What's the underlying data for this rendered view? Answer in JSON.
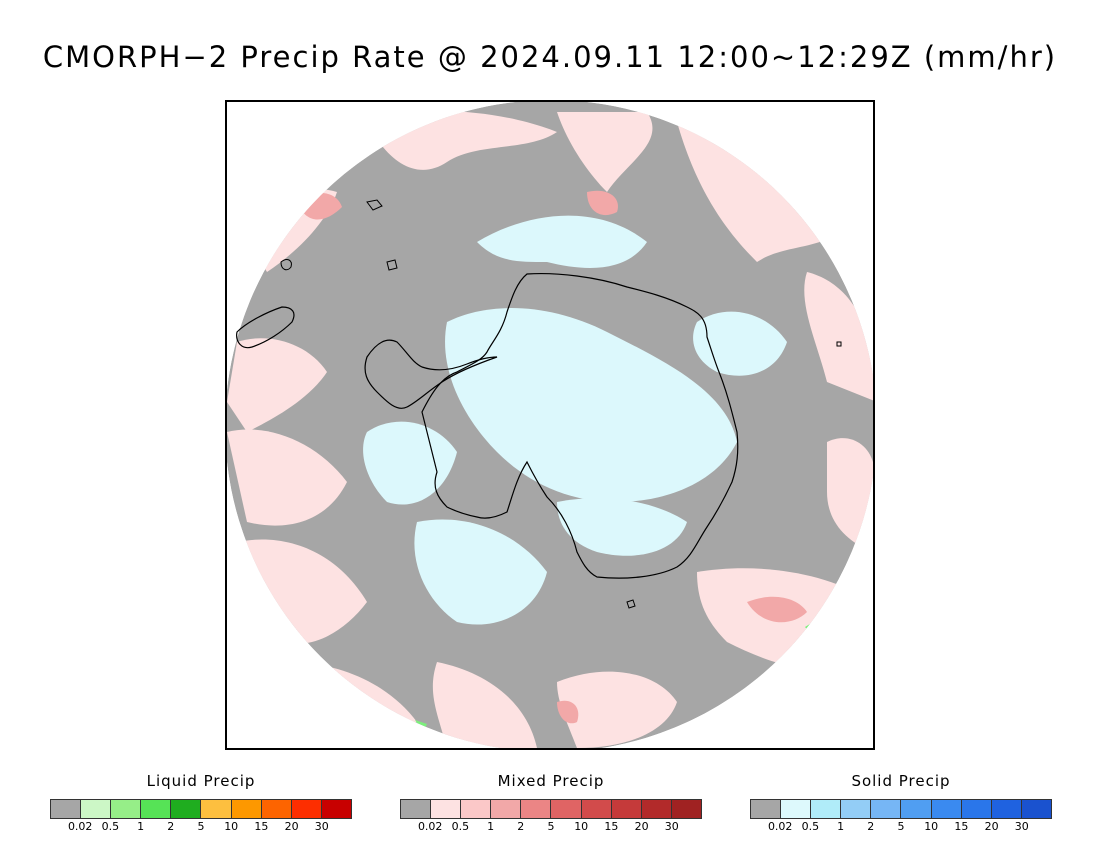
{
  "title": "CMORPH−2 Precip Rate @ 2024.09.11 12:00~12:29Z (mm/hr)",
  "map": {
    "projection": "south-polar-stereographic",
    "colors": {
      "no_precip": "#a6a6a6",
      "light_mixed": "#fde2e2",
      "light_solid": "#dcf8fc",
      "moderate_mixed": "#f2a8a8",
      "liquid": "#7cf07c",
      "coastline": "#000000",
      "outside": "#ffffff"
    }
  },
  "legends": [
    {
      "id": "liquid",
      "title": "Liquid Precip",
      "colors": [
        "#a6a6a6",
        "#ccf7c6",
        "#96ee88",
        "#56e356",
        "#1fad1f",
        "#fdbf3f",
        "#fd9800",
        "#fd6400",
        "#fd2e00",
        "#c80000"
      ],
      "ticks": [
        "0.02",
        "0.5",
        "1",
        "2",
        "5",
        "10",
        "15",
        "20",
        "30"
      ]
    },
    {
      "id": "mixed",
      "title": "Mixed Precip",
      "colors": [
        "#a6a6a6",
        "#fde2e2",
        "#fbc8c8",
        "#f2a8a8",
        "#eb8585",
        "#e06464",
        "#d24b4b",
        "#c53a3a",
        "#b22a2a",
        "#a02222"
      ],
      "ticks": [
        "0.02",
        "0.5",
        "1",
        "2",
        "5",
        "10",
        "15",
        "20",
        "30"
      ]
    },
    {
      "id": "solid",
      "title": "Solid Precip",
      "colors": [
        "#a6a6a6",
        "#ddf9fc",
        "#b0ecf9",
        "#93cdf6",
        "#76b6f5",
        "#509ef2",
        "#3a8af0",
        "#2a76ea",
        "#1f62e0",
        "#1a52cf"
      ],
      "ticks": [
        "0.02",
        "0.5",
        "1",
        "2",
        "5",
        "10",
        "15",
        "20",
        "30"
      ]
    }
  ]
}
